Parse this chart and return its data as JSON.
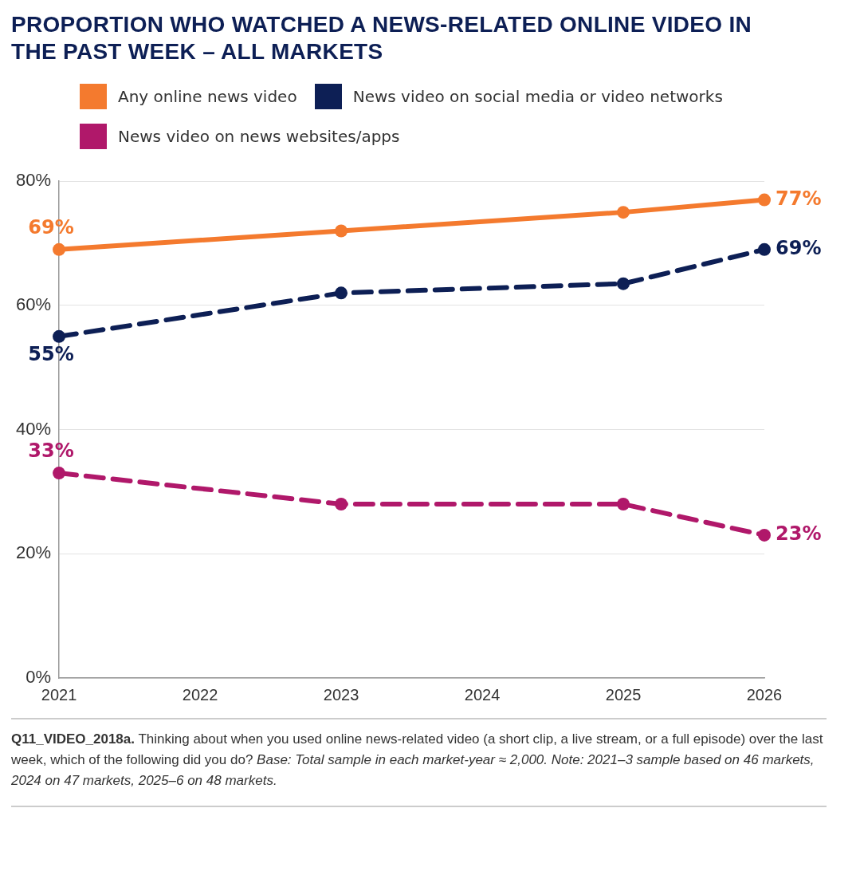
{
  "chart_data": {
    "type": "line",
    "title": "PROPORTION WHO WATCHED A NEWS-RELATED ONLINE VIDEO IN THE PAST WEEK – ALL MARKETS",
    "x": [
      2021,
      2023,
      2025,
      2026
    ],
    "series": [
      {
        "name": "Any online news video",
        "color": "#f47a2e",
        "values": [
          69,
          72,
          75,
          77
        ],
        "line_style": "solid",
        "value_labels": [
          "69%",
          null,
          null,
          "77%"
        ]
      },
      {
        "name": "News video on social media or video networks",
        "color": "#0d1f55",
        "values": [
          55,
          62,
          63.5,
          69
        ],
        "line_style": "dashed",
        "value_labels": [
          "55%",
          null,
          null,
          "69%"
        ]
      },
      {
        "name": "News video on news websites/apps",
        "color": "#b0186a",
        "values": [
          33,
          28,
          28,
          23
        ],
        "line_style": "dashed",
        "value_labels": [
          "33%",
          null,
          null,
          "23%"
        ]
      }
    ],
    "xlim": [
      2021,
      2026
    ],
    "xticks": [
      2021,
      2022,
      2023,
      2024,
      2025,
      2026
    ],
    "ylim": [
      0,
      80
    ],
    "yticks": [
      {
        "value": 0,
        "label": "0%"
      },
      {
        "value": 20,
        "label": "20%"
      },
      {
        "value": 40,
        "label": "40%"
      },
      {
        "value": 60,
        "label": "60%"
      },
      {
        "value": 80,
        "label": "80%"
      }
    ],
    "grid": "y",
    "legend": "top",
    "marker": "circle",
    "annotations": [
      "Q11_VIDEO_2018a.",
      "Thinking about when you used online news-related video (a short clip, a live stream, or a full episode) over the last week, which of the following did you do?",
      "Base: Total sample in each market-year ≈ 2,000. Note: 2021–3 sample based on 46 markets, 2024 on 47 markets, 2025–6 on 48 markets."
    ]
  }
}
